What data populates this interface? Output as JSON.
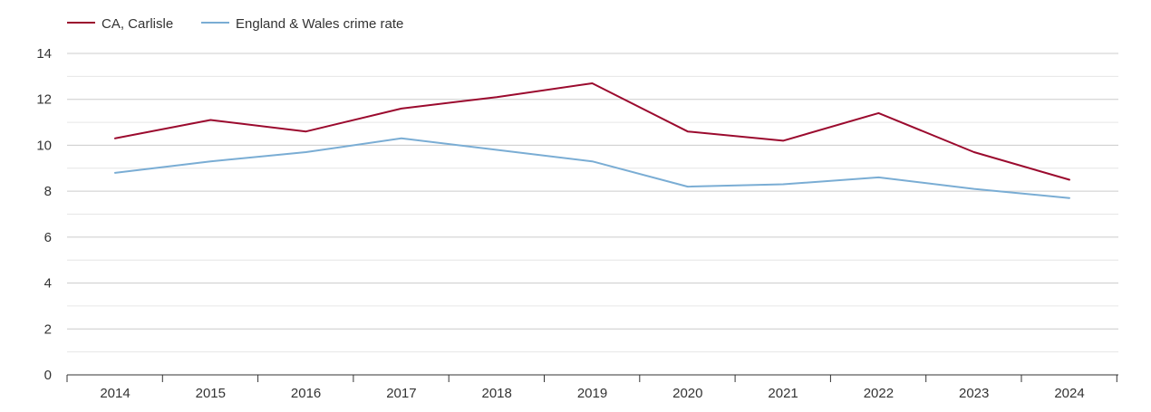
{
  "chart_data": {
    "type": "line",
    "title": "",
    "xlabel": "",
    "ylabel": "",
    "categories": [
      "2014",
      "2015",
      "2016",
      "2017",
      "2018",
      "2019",
      "2020",
      "2021",
      "2022",
      "2023",
      "2024"
    ],
    "ylim": [
      0,
      14
    ],
    "y_ticks": [
      "0",
      "2",
      "4",
      "6",
      "8",
      "10",
      "12",
      "14"
    ],
    "grid": true,
    "legend_position": "top-left",
    "series": [
      {
        "name": "CA, Carlisle",
        "color": "#9b0a2e",
        "values": [
          10.3,
          11.1,
          10.6,
          11.6,
          12.1,
          12.7,
          10.6,
          10.2,
          11.4,
          9.7,
          8.5
        ]
      },
      {
        "name": "England & Wales crime rate",
        "color": "#7aadd4",
        "values": [
          8.8,
          9.3,
          9.7,
          10.3,
          9.8,
          9.3,
          8.2,
          8.3,
          8.6,
          8.1,
          7.7
        ]
      }
    ]
  }
}
